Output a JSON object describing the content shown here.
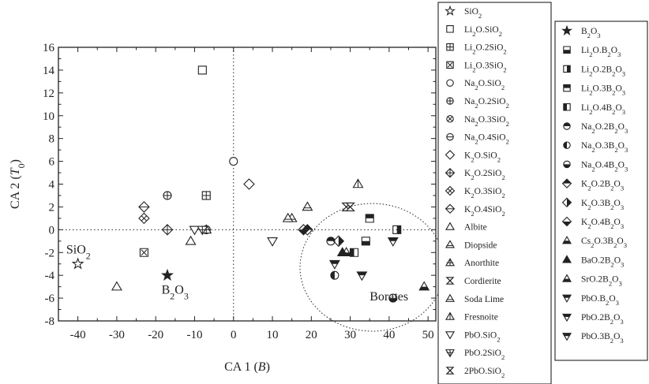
{
  "chart_data": {
    "type": "scatter",
    "title": "",
    "xlabel": "CA 1 (B)",
    "ylabel": "CA 2 (T0)",
    "xlim": [
      -45,
      52
    ],
    "ylim": [
      -8,
      16
    ],
    "xticks": [
      "-40",
      "-30",
      "-20",
      "-10",
      "0",
      "10",
      "20",
      "30",
      "40",
      "50"
    ],
    "yticks": [
      "-8",
      "-6",
      "-4",
      "-2",
      "0",
      "2",
      "4",
      "6",
      "8",
      "10",
      "12",
      "14",
      "16"
    ],
    "grid": false,
    "reference_lines": {
      "x": 0,
      "y": 0,
      "style": "dotted"
    },
    "legend_placement": "right, two columns",
    "annotations": [
      {
        "text": "SiO2",
        "x": -43,
        "y": -2.1
      },
      {
        "text": "B2O3",
        "x": -18.5,
        "y": -5.6
      },
      {
        "text": "Borates",
        "x": 35,
        "y": -6.2
      }
    ],
    "ellipse": {
      "cx": 35.7,
      "cy": -3.3,
      "rx": 18.6,
      "ry": 5.6
    },
    "series": [
      {
        "name": "SiO₂",
        "marker": "star-open",
        "points": [
          [
            -40,
            -3
          ]
        ]
      },
      {
        "name": "Li₂O.SiO₂",
        "marker": "square-open",
        "points": [
          [
            -8,
            14
          ]
        ]
      },
      {
        "name": "Li₂O.2SiO₂",
        "marker": "square-plus",
        "points": [
          [
            -7,
            3
          ]
        ]
      },
      {
        "name": "Li₂O.3SiO₂",
        "marker": "square-x",
        "points": [
          [
            -23,
            -2
          ]
        ]
      },
      {
        "name": "Na₂O.SiO₂",
        "marker": "circle-open",
        "points": [
          [
            0,
            6
          ]
        ]
      },
      {
        "name": "Na₂O.2SiO₂",
        "marker": "circle-plus",
        "points": [
          [
            -17,
            3
          ]
        ]
      },
      {
        "name": "Na₂O.3SiO₂",
        "marker": "circle-x",
        "points": [
          [
            -7,
            0
          ]
        ]
      },
      {
        "name": "Na₂O.4SiO₂",
        "marker": "circle-hline",
        "points": [
          [
            -7,
            0
          ]
        ]
      },
      {
        "name": "K₂O.SiO₂",
        "marker": "diamond-open",
        "points": [
          [
            4,
            4
          ]
        ]
      },
      {
        "name": "K₂O.2SiO₂",
        "marker": "diamond-plus",
        "points": [
          [
            -17,
            0
          ]
        ]
      },
      {
        "name": "K₂O.3SiO₂",
        "marker": "diamond-x",
        "points": [
          [
            -23,
            1
          ]
        ]
      },
      {
        "name": "K₂O.4SiO₂",
        "marker": "diamond-hline",
        "points": [
          [
            -23,
            2
          ]
        ]
      },
      {
        "name": "Albite",
        "marker": "triangle-open",
        "points": [
          [
            -30,
            -5
          ],
          [
            -11,
            -1
          ]
        ]
      },
      {
        "name": "Diopside",
        "marker": "triangle-hline",
        "points": [
          [
            19,
            2
          ],
          [
            15,
            1
          ]
        ]
      },
      {
        "name": "Anorthite",
        "marker": "triangle-plus",
        "points": [
          [
            -7,
            0
          ]
        ]
      },
      {
        "name": "Cordierite",
        "marker": "bowtie-x",
        "points": [
          [
            29,
            2
          ]
        ]
      },
      {
        "name": "Soda Lime",
        "marker": "triangle-hline",
        "points": [
          [
            14,
            1
          ]
        ]
      },
      {
        "name": "Fresnoite",
        "marker": "triangle-vline",
        "points": [
          [
            32,
            4
          ]
        ]
      },
      {
        "name": "PbO.SiO₂",
        "marker": "tri-down-open",
        "points": [
          [
            10,
            -1
          ],
          [
            -10,
            0
          ]
        ]
      },
      {
        "name": "PbO.2SiO₂",
        "marker": "tri-down-plus",
        "points": [
          [
            -8,
            0
          ]
        ]
      },
      {
        "name": "2PbO.SiO₂",
        "marker": "bowtie-x",
        "points": [
          [
            30,
            2
          ]
        ]
      },
      {
        "name": "B₂O₃",
        "marker": "star-solid",
        "points": [
          [
            -17,
            -4
          ]
        ]
      },
      {
        "name": "Li₂O.B₂O₃",
        "marker": "square-bottom",
        "points": [
          [
            34,
            -1
          ]
        ]
      },
      {
        "name": "Li₂O.2B₂O₃",
        "marker": "square-right",
        "points": [
          [
            42,
            0
          ]
        ]
      },
      {
        "name": "Li₂O.3B₂O₃",
        "marker": "square-top",
        "points": [
          [
            35,
            1
          ]
        ]
      },
      {
        "name": "Li₂O.4B₂O₃",
        "marker": "square-left",
        "points": [
          [
            31,
            -2
          ]
        ]
      },
      {
        "name": "Na₂O.2B₂O₃",
        "marker": "circle-top",
        "points": [
          [
            25,
            -1
          ]
        ]
      },
      {
        "name": "Na₂O.3B₂O₃",
        "marker": "circle-left",
        "points": [
          [
            26,
            -4
          ]
        ]
      },
      {
        "name": "Na₂O.4B₂O₃",
        "marker": "circle-bottom",
        "points": [
          [
            41,
            -6
          ]
        ]
      },
      {
        "name": "K₂O.2B₂O₃",
        "marker": "diamond-top",
        "points": [
          [
            19,
            0
          ]
        ]
      },
      {
        "name": "K₂O.3B₂O₃",
        "marker": "diamond-right",
        "points": [
          [
            27,
            -1
          ]
        ]
      },
      {
        "name": "K₂O.4B₂O₃",
        "marker": "diamond-bottom",
        "points": [
          [
            18,
            0
          ]
        ]
      },
      {
        "name": "Cs₂O.3B₂O₃",
        "marker": "triangle-bottom",
        "points": [
          [
            49,
            -5
          ]
        ]
      },
      {
        "name": "BaO.2B₂O₃",
        "marker": "triangle-solid",
        "points": [
          [
            28,
            -2
          ]
        ]
      },
      {
        "name": "SrO.2B₂O₃",
        "marker": "triangle-bottom",
        "points": [
          [
            29,
            -2
          ]
        ]
      },
      {
        "name": "PbO.B₂O₃",
        "marker": "tri-down-top",
        "points": [
          [
            41,
            -1
          ]
        ]
      },
      {
        "name": "PbO.2B₂O₃",
        "marker": "tri-down-top",
        "points": [
          [
            26,
            -3
          ]
        ]
      },
      {
        "name": "PbO.3B₂O₃",
        "marker": "tri-down-top",
        "points": [
          [
            33,
            -4
          ]
        ]
      }
    ]
  }
}
